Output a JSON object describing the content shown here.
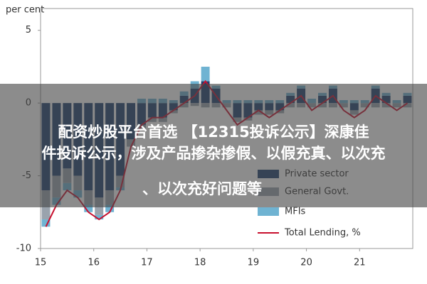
{
  "chart_data": {
    "type": "stacked-bar-line",
    "y_label": "per cent",
    "x": [
      2015.1,
      2015.3,
      2015.5,
      2015.7,
      2015.9,
      2016.1,
      2016.3,
      2016.5,
      2016.7,
      2016.9,
      2017.1,
      2017.3,
      2017.5,
      2017.7,
      2017.9,
      2018.1,
      2018.3,
      2018.5,
      2018.7,
      2018.9,
      2019.1,
      2019.3,
      2019.5,
      2019.7,
      2019.9,
      2020.1,
      2020.3,
      2020.5,
      2020.7,
      2020.9,
      2021.1,
      2021.3,
      2021.5,
      2021.7,
      2021.9
    ],
    "series": [
      {
        "name": "Private sector",
        "color": "#1f3f6e",
        "kind": "bar",
        "values": [
          -6,
          -5,
          -4.5,
          -5,
          -6,
          -6.5,
          -6,
          -5,
          -2.5,
          -1.5,
          -1,
          -1,
          -0.5,
          0.5,
          1,
          1.5,
          1,
          0,
          -1,
          -1,
          -0.5,
          -0.5,
          -0.5,
          0.5,
          1,
          0,
          0.5,
          1,
          0,
          -0.5,
          0,
          1,
          0.5,
          0,
          0.5
        ]
      },
      {
        "name": "General Govt.",
        "color": "#9aa3ad",
        "kind": "bar",
        "values": [
          -2,
          -1.5,
          -1,
          -1,
          -1,
          -1.2,
          -1,
          -0.8,
          -0.5,
          -0.3,
          -0.3,
          -0.3,
          -0.2,
          -0.3,
          -0.2,
          -0.3,
          -0.3,
          -0.3,
          -0.3,
          -0.2,
          -0.3,
          -0.3,
          -0.2,
          -0.3,
          -0.3,
          -0.3,
          -0.3,
          -0.3,
          -0.3,
          -0.3,
          -0.3,
          -0.3,
          -0.3,
          -0.3,
          -0.3
        ]
      },
      {
        "name": "MFIs",
        "color": "#6fb3d2",
        "kind": "bar",
        "values": [
          -0.5,
          -0.5,
          -0.5,
          -0.5,
          -0.5,
          -0.3,
          -0.5,
          -0.2,
          0,
          0.3,
          0.3,
          0.3,
          0.2,
          0.3,
          0.5,
          1,
          0.2,
          0.2,
          0.2,
          0.2,
          0.2,
          0.2,
          0.2,
          0.2,
          0.2,
          0.3,
          0.2,
          0.2,
          0.2,
          0.2,
          0.2,
          0.2,
          0.2,
          0.2,
          0.2
        ]
      },
      {
        "name": "Total Lending, %",
        "color": "#c8102e",
        "kind": "line",
        "values": [
          -8.5,
          -7,
          -6,
          -6.5,
          -7.5,
          -8,
          -7.5,
          -6,
          -3,
          -1.5,
          -1,
          -1,
          -0.5,
          0,
          0.5,
          1.5,
          0.5,
          -0.5,
          -1.5,
          -1,
          -0.5,
          -1,
          -0.5,
          0,
          0.5,
          -0.5,
          0,
          0.5,
          -0.5,
          -1,
          -0.5,
          0.5,
          0,
          -0.5,
          0
        ]
      }
    ],
    "xlim": [
      2015,
      2022
    ],
    "xticks": [
      {
        "value": 2015,
        "label": "15"
      },
      {
        "value": 2016,
        "label": "16"
      },
      {
        "value": 2017,
        "label": "17"
      },
      {
        "value": 2018,
        "label": "18"
      },
      {
        "value": 2019,
        "label": "19"
      },
      {
        "value": 2020,
        "label": "20"
      },
      {
        "value": 2021,
        "label": "21"
      }
    ],
    "ylim": [
      -10,
      6.5
    ],
    "yticks": [
      5,
      0,
      -5,
      -10
    ]
  },
  "overlay": {
    "lines": [
      "配资炒股平台首选 【12315投诉公示】深康佳",
      "件投诉公示，涉及产品掺杂掺假、以假充真、以次充",
      "、以次充好问题等"
    ]
  }
}
